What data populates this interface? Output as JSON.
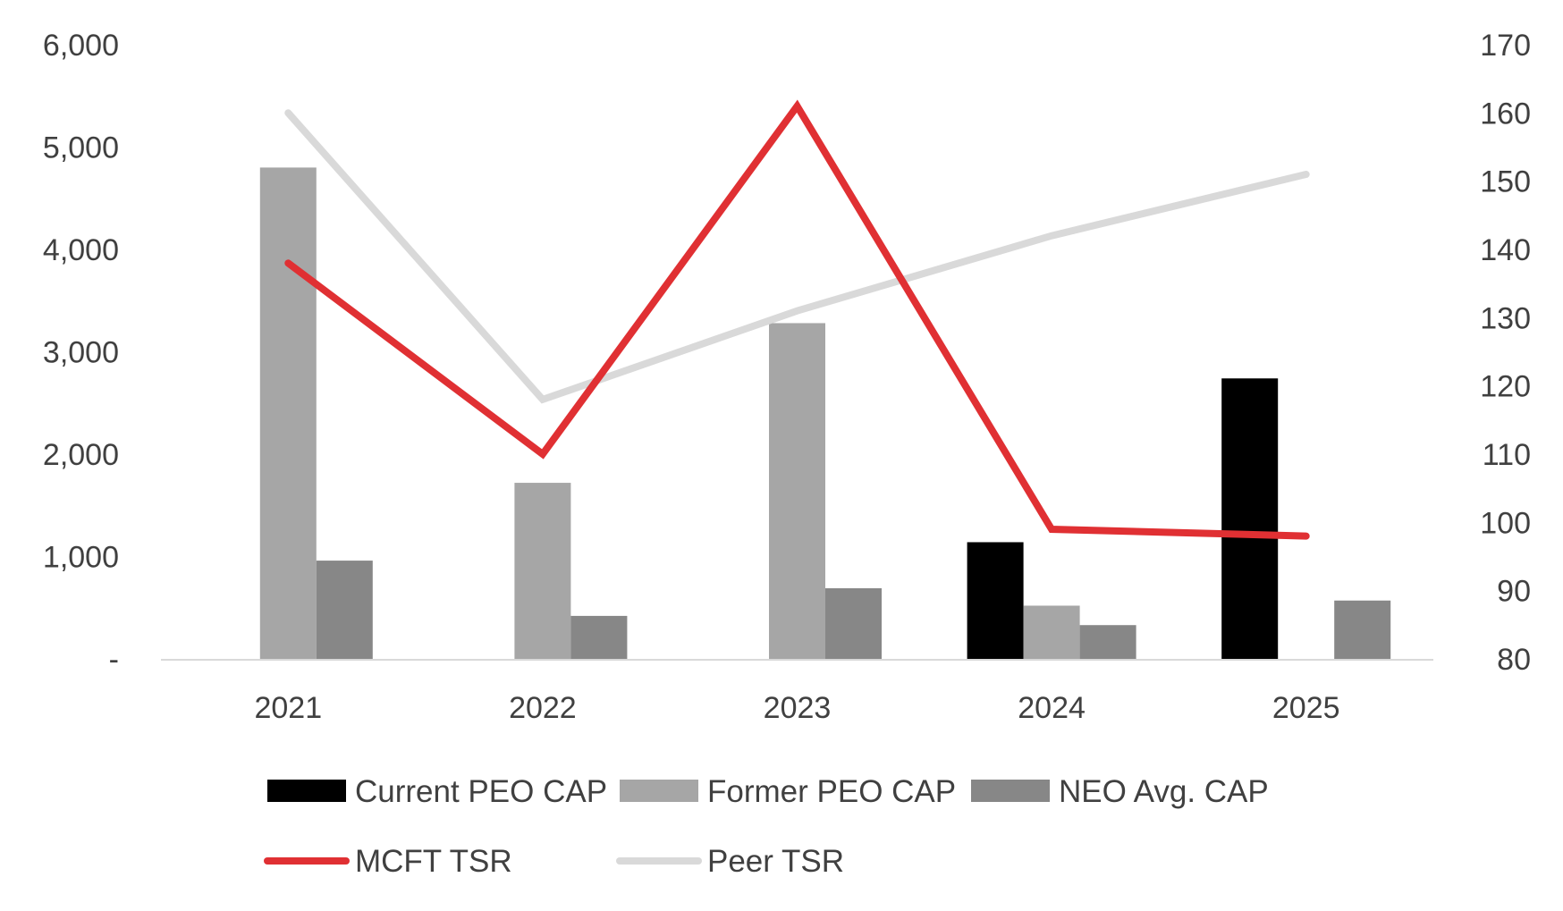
{
  "chart_data": {
    "type": "bar",
    "categories": [
      "2021",
      "2022",
      "2023",
      "2024",
      "2025"
    ],
    "y_left": {
      "range": [
        0,
        6000
      ],
      "ticks": [
        0,
        1000,
        2000,
        3000,
        4000,
        5000,
        6000
      ],
      "tick_labels": [
        "-",
        "1,000",
        "2,000",
        "3,000",
        "4,000",
        "5,000",
        "6,000"
      ]
    },
    "y_right": {
      "range": [
        80,
        170
      ],
      "ticks": [
        80,
        90,
        100,
        110,
        120,
        130,
        140,
        150,
        160,
        170
      ],
      "tick_labels": [
        "80",
        "90",
        "100",
        "110",
        "120",
        "130",
        "140",
        "150",
        "160",
        "170"
      ]
    },
    "bar_series": [
      {
        "name": "Current PEO CAP",
        "color": "#000000",
        "values": [
          0,
          0,
          0,
          1140,
          2740
        ]
      },
      {
        "name": "Former PEO CAP",
        "color": "#a6a6a6",
        "values": [
          4800,
          1720,
          3280,
          520,
          0
        ]
      },
      {
        "name": "NEO Avg. CAP",
        "color": "#878787",
        "values": [
          960,
          420,
          690,
          330,
          570
        ]
      }
    ],
    "line_series": [
      {
        "name": "MCFT TSR",
        "color": "#e03033",
        "axis": "right",
        "values": [
          138,
          110,
          161,
          99,
          98
        ]
      },
      {
        "name": "Peer TSR",
        "color": "#d9d9d9",
        "axis": "right",
        "values": [
          160,
          118,
          131,
          142,
          151
        ]
      }
    ],
    "title": "",
    "xlabel": "",
    "ylabel": "",
    "grid": false,
    "legend_position": "bottom"
  }
}
